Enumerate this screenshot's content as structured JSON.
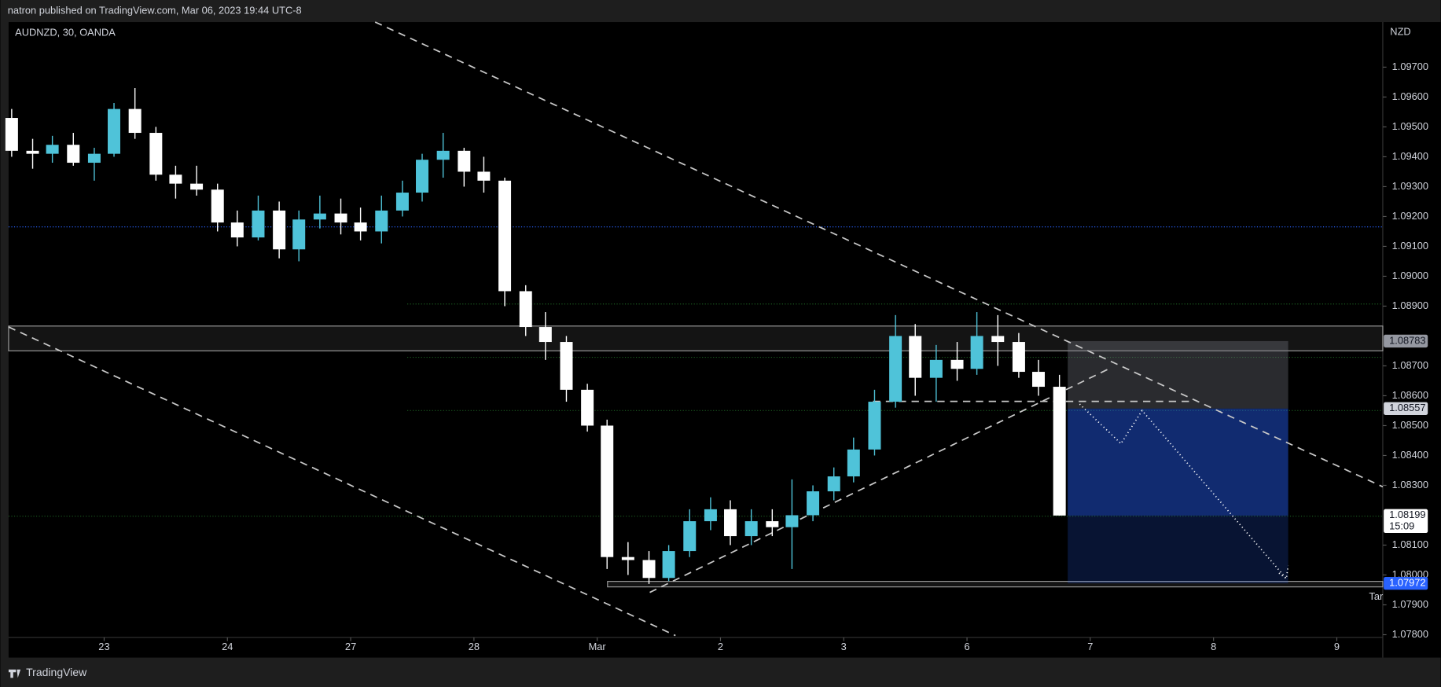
{
  "header": {
    "publisher": "natron published on TradingView.com, Mar 06, 2023 19:44 UTC-8"
  },
  "footer": {
    "brand": "TradingView"
  },
  "chart_data": {
    "type": "candlestick",
    "title": "AUDNZD, 30, OANDA",
    "y_unit_label": "NZD",
    "x": [
      -0.75,
      -0.58,
      -0.42,
      -0.25,
      -0.08,
      0.08,
      0.25,
      0.42,
      0.58,
      0.75,
      0.92,
      1.08,
      1.25,
      1.42,
      1.58,
      1.75,
      1.92,
      2.08,
      2.25,
      2.42,
      2.58,
      2.75,
      2.92,
      3.08,
      3.25,
      3.42,
      3.58,
      3.75,
      3.92,
      4.08,
      4.25,
      4.42,
      4.58,
      4.75,
      4.92,
      5.08,
      5.25,
      5.42,
      5.58,
      5.75,
      5.92,
      6.08,
      6.25,
      6.42,
      6.58,
      6.75,
      6.92,
      7.08,
      7.25,
      7.42,
      7.58,
      7.75
    ],
    "open": [
      1.0953,
      1.0942,
      1.0941,
      1.0944,
      1.0938,
      1.0941,
      1.0956,
      1.0948,
      1.0934,
      1.0931,
      1.0929,
      1.0918,
      1.0913,
      1.0922,
      1.0909,
      1.0919,
      1.0921,
      1.0918,
      1.0915,
      1.0922,
      1.0928,
      1.0939,
      1.0942,
      1.0935,
      1.0932,
      1.0895,
      1.0883,
      1.0878,
      1.0862,
      1.085,
      1.0806,
      1.0805,
      1.0799,
      1.0808,
      1.0818,
      1.0822,
      1.0813,
      1.0818,
      1.0816,
      1.082,
      1.0828,
      1.0833,
      1.0842,
      1.0858,
      1.088,
      1.0866,
      1.0872,
      1.0869,
      1.088,
      1.0878,
      1.0868,
      1.0863
    ],
    "high": [
      1.0956,
      1.0946,
      1.0947,
      1.0948,
      1.0943,
      1.0958,
      1.0963,
      1.095,
      1.0937,
      1.0937,
      1.0931,
      1.0922,
      1.0927,
      1.0925,
      1.0922,
      1.0927,
      1.0926,
      1.0923,
      1.0927,
      1.0932,
      1.0941,
      1.0948,
      1.0943,
      1.094,
      1.0933,
      1.0897,
      1.0888,
      1.088,
      1.0864,
      1.0852,
      1.0811,
      1.0808,
      1.081,
      1.0822,
      1.0826,
      1.0825,
      1.0822,
      1.0822,
      1.0832,
      1.083,
      1.0836,
      1.0846,
      1.0862,
      1.0887,
      1.0884,
      1.0877,
      1.0878,
      1.0888,
      1.0887,
      1.0881,
      1.0872,
      1.0867
    ],
    "low": [
      1.094,
      1.0936,
      1.0938,
      1.0937,
      1.0932,
      1.094,
      1.0946,
      1.0932,
      1.0926,
      1.0927,
      1.0915,
      1.091,
      1.0912,
      1.0906,
      1.0905,
      1.0916,
      1.0914,
      1.0912,
      1.0911,
      1.092,
      1.0925,
      1.0933,
      1.093,
      1.0928,
      1.089,
      1.088,
      1.0872,
      1.0858,
      1.0848,
      1.0802,
      1.08,
      1.0797,
      1.0798,
      1.0806,
      1.0815,
      1.081,
      1.081,
      1.0813,
      1.0802,
      1.0818,
      1.0825,
      1.0831,
      1.084,
      1.0856,
      1.086,
      1.0858,
      1.0865,
      1.0867,
      1.087,
      1.0866,
      1.086,
      1.08199
    ],
    "close": [
      1.0942,
      1.0941,
      1.0944,
      1.0938,
      1.0941,
      1.0956,
      1.0948,
      1.0934,
      1.0931,
      1.0929,
      1.0918,
      1.0913,
      1.0922,
      1.0909,
      1.0919,
      1.0921,
      1.0918,
      1.0915,
      1.0922,
      1.0928,
      1.0939,
      1.0942,
      1.0935,
      1.0932,
      1.0895,
      1.0883,
      1.0878,
      1.0862,
      1.085,
      1.0806,
      1.0805,
      1.0799,
      1.0808,
      1.0818,
      1.0822,
      1.0813,
      1.0818,
      1.0816,
      1.082,
      1.0828,
      1.0833,
      1.0842,
      1.0858,
      1.088,
      1.0866,
      1.0872,
      1.0869,
      1.088,
      1.0878,
      1.0868,
      1.0863,
      1.08199
    ],
    "up_color": "#4fc3d9",
    "down_color": "#ffffff",
    "xlim": [
      -0.775,
      10.373
    ],
    "xticks": [
      {
        "value": 0,
        "label": "23"
      },
      {
        "value": 1,
        "label": "24"
      },
      {
        "value": 2,
        "label": "27"
      },
      {
        "value": 3,
        "label": "28"
      },
      {
        "value": 4,
        "label": "Mar"
      },
      {
        "value": 5,
        "label": "2"
      },
      {
        "value": 6,
        "label": "3"
      },
      {
        "value": 7,
        "label": "6"
      },
      {
        "value": 8,
        "label": "7"
      },
      {
        "value": 9,
        "label": "8"
      },
      {
        "value": 10,
        "label": "9"
      }
    ],
    "ylim": [
      1.07791,
      1.09851
    ],
    "yticks": [
      {
        "value": 1.097,
        "label": "1.09700"
      },
      {
        "value": 1.096,
        "label": "1.09600"
      },
      {
        "value": 1.095,
        "label": "1.09500"
      },
      {
        "value": 1.094,
        "label": "1.09400"
      },
      {
        "value": 1.093,
        "label": "1.09300"
      },
      {
        "value": 1.092,
        "label": "1.09200"
      },
      {
        "value": 1.091,
        "label": "1.09100"
      },
      {
        "value": 1.09,
        "label": "1.09000"
      },
      {
        "value": 1.089,
        "label": "1.08900"
      },
      {
        "value": 1.087,
        "label": "1.08700"
      },
      {
        "value": 1.086,
        "label": "1.08600"
      },
      {
        "value": 1.085,
        "label": "1.08500"
      },
      {
        "value": 1.084,
        "label": "1.08400"
      },
      {
        "value": 1.083,
        "label": "1.08300"
      },
      {
        "value": 1.081,
        "label": "1.08100"
      },
      {
        "value": 1.08,
        "label": "1.08000"
      },
      {
        "value": 1.079,
        "label": "1.07900"
      },
      {
        "value": 1.078,
        "label": "1.07800"
      }
    ],
    "grid": false,
    "price_tags": [
      {
        "value": 1.08783,
        "color": "#9598a1",
        "text_color": "#131722"
      },
      {
        "value": 1.08557,
        "color": "#d1d4dc",
        "text_color": "#131722"
      },
      {
        "value": 1.08199,
        "color": "#ffffff",
        "text_color": "#131722"
      },
      {
        "value": 1.07972,
        "color": "#2962ff",
        "text_color": "#ffffff"
      }
    ],
    "countdown": "15:09",
    "target_text": "Tar"
  }
}
